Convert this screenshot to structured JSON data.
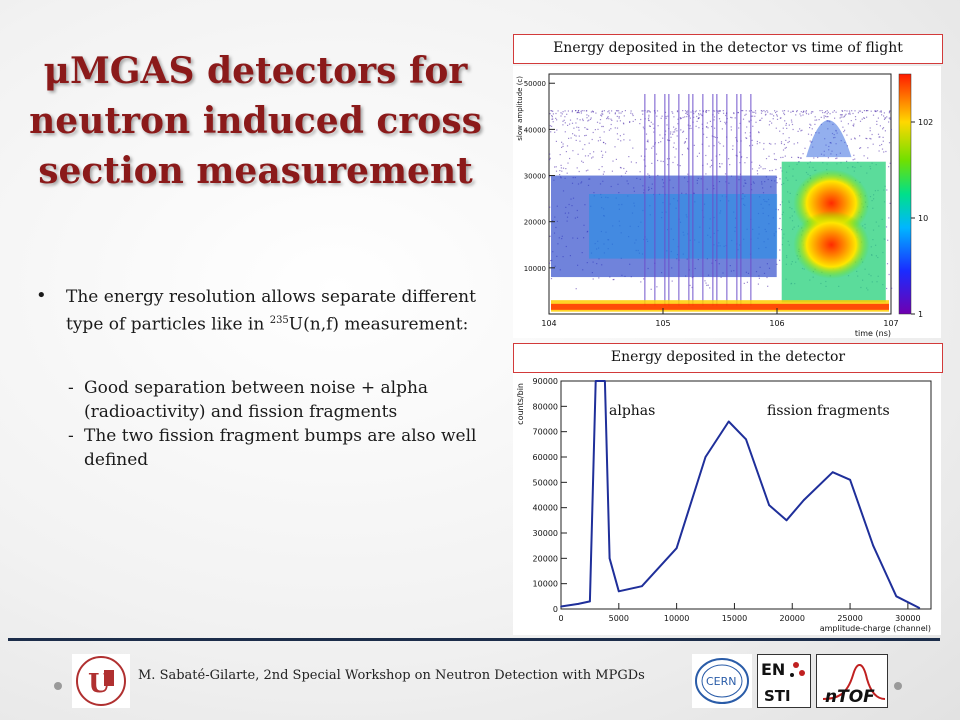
{
  "title": {
    "line1": "μMGAS detectors for",
    "line2": "neutron induced cross",
    "line3": "section measurement"
  },
  "bullet": {
    "text_before": "The energy resolution allows separate different type of particles like in ",
    "superscript": "235",
    "text_after": "U(n,f) measurement:"
  },
  "sub_items": [
    "Good separation between noise + alpha (radioactivity) and fission fragments",
    "The two fission fragment bumps are also well defined"
  ],
  "captions": {
    "top": "Energy deposited in the detector vs time of flight",
    "bottom": "Energy deposited in the detector"
  },
  "footer": {
    "text": "M. Sabaté-Gilarte, 2nd Special Workshop on Neutron Detection with MPGDs"
  },
  "logos": {
    "cern": "CERN",
    "en": "EN",
    "sti": "STI",
    "ntof": "nTOF"
  },
  "colors": {
    "title": "#8b1a1a",
    "caption_border": "#d23a3a",
    "footer_rule": "#1c2d4a",
    "histogram_line": "#1f2f9a"
  },
  "chart_data": [
    {
      "type": "heatmap",
      "title": "",
      "xlabel": "time (ns)",
      "ylabel": "slow amplitude (c)",
      "x_scale": "log",
      "x_ticks": [
        "10^4",
        "10^5",
        "10^6",
        "10^7"
      ],
      "y_ticks": [
        10000,
        20000,
        30000,
        40000,
        50000
      ],
      "ylim": [
        0,
        52000
      ],
      "colorbar_scale": "log",
      "colorbar_ticks": [
        "1",
        "10",
        "10^2"
      ],
      "features": [
        {
          "label": "noise band",
          "y": 1500
        },
        {
          "label": "alpha band",
          "y_range": [
            8000,
            30000
          ]
        },
        {
          "label": "fission fragment lobe",
          "y": 24000,
          "x": 3000000
        },
        {
          "label": "fission fragment lobe",
          "y": 15000,
          "x": 3000000
        }
      ]
    },
    {
      "type": "line",
      "title": "",
      "xlabel": "amplitude-charge (channel)",
      "ylabel": "counts/bin",
      "xlim": [
        0,
        32000
      ],
      "ylim": [
        0,
        90000
      ],
      "x_ticks": [
        0,
        5000,
        10000,
        15000,
        20000,
        25000,
        30000
      ],
      "y_ticks": [
        0,
        10000,
        20000,
        30000,
        40000,
        50000,
        60000,
        70000,
        80000,
        90000
      ],
      "annotations": [
        "alphas",
        "fission fragments"
      ],
      "series": [
        {
          "x": [
            0,
            1500,
            2500,
            3000,
            3800,
            4200,
            5000,
            7000,
            10000,
            12500,
            14500,
            16000,
            18000,
            19500,
            21000,
            23500,
            25000,
            27000,
            29000,
            31000
          ],
          "values": [
            1000,
            2000,
            3000,
            90000,
            90000,
            20000,
            7000,
            9000,
            24000,
            60000,
            74000,
            67000,
            41000,
            35000,
            43000,
            54000,
            51000,
            25000,
            5000,
            400
          ]
        }
      ]
    }
  ]
}
